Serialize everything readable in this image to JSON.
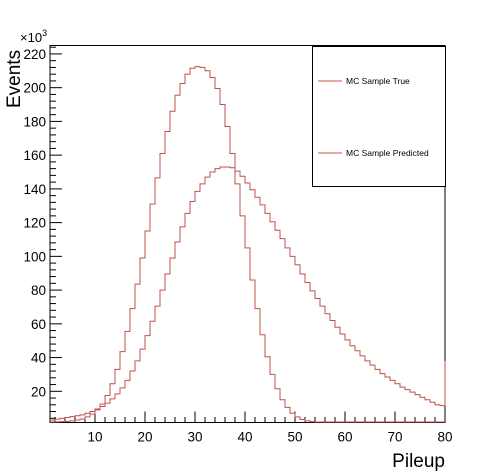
{
  "chart_data": {
    "type": "step-histogram",
    "xlabel": "Pileup",
    "ylabel": "Events",
    "y_multiplier": {
      "base": "×10",
      "exponent": "3"
    },
    "xlim": [
      1,
      80
    ],
    "ylim": [
      1.5,
      225
    ],
    "bin_width": 1,
    "x_ticks": [
      10,
      20,
      30,
      40,
      50,
      60,
      70,
      80
    ],
    "y_ticks": [
      20,
      40,
      60,
      80,
      100,
      120,
      140,
      160,
      180,
      200,
      220
    ],
    "legend_position": "top-right",
    "grid": false,
    "series": [
      {
        "name": "MC Sample True",
        "color": "#c0504d",
        "bin_starts": [
          1,
          2,
          3,
          4,
          5,
          6,
          7,
          8,
          9,
          10,
          11,
          12,
          13,
          14,
          15,
          16,
          17,
          18,
          19,
          20,
          21,
          22,
          23,
          24,
          25,
          26,
          27,
          28,
          29,
          30,
          31,
          32,
          33,
          34,
          35,
          36,
          37,
          38,
          39,
          40,
          41,
          42,
          43,
          44,
          45,
          46,
          47,
          48,
          49,
          50,
          51,
          52,
          53,
          54,
          55,
          56,
          57,
          58,
          59,
          60,
          61,
          62,
          63,
          64,
          65,
          66,
          67,
          68,
          69,
          70,
          71,
          72,
          73,
          74,
          75,
          76,
          77,
          78,
          79,
          80
        ],
        "values": [
          1.8,
          1.9,
          2.0,
          2.2,
          2.5,
          3.0,
          3.6,
          4.8,
          6.5,
          9.0,
          12.5,
          17.5,
          24.5,
          33,
          43.5,
          55.5,
          69,
          83.5,
          99,
          115,
          131,
          146.5,
          161,
          174,
          186,
          195.5,
          202.5,
          208,
          211.5,
          212.5,
          212,
          210,
          206,
          199.5,
          190,
          177,
          161,
          143,
          124,
          105,
          86,
          69,
          53.5,
          40.5,
          30,
          21.5,
          15,
          10.5,
          7,
          4.8,
          3.3,
          2.5,
          2.0,
          1.8,
          1.8,
          1.8,
          1.8,
          1.8,
          1.8,
          1.8,
          1.8,
          1.8,
          1.8,
          1.8,
          1.8,
          1.8,
          1.8,
          1.8,
          1.8,
          1.8,
          1.8,
          1.8,
          1.8,
          1.8,
          1.8,
          1.8,
          1.8,
          1.8,
          1.8,
          1.8
        ]
      },
      {
        "name": "MC Sample Predicted",
        "color": "#c0504d",
        "bin_starts": [
          1,
          2,
          3,
          4,
          5,
          6,
          7,
          8,
          9,
          10,
          11,
          12,
          13,
          14,
          15,
          16,
          17,
          18,
          19,
          20,
          21,
          22,
          23,
          24,
          25,
          26,
          27,
          28,
          29,
          30,
          31,
          32,
          33,
          34,
          35,
          36,
          37,
          38,
          39,
          40,
          41,
          42,
          43,
          44,
          45,
          46,
          47,
          48,
          49,
          50,
          51,
          52,
          53,
          54,
          55,
          56,
          57,
          58,
          59,
          60,
          61,
          62,
          63,
          64,
          65,
          66,
          67,
          68,
          69,
          70,
          71,
          72,
          73,
          74,
          75,
          76,
          77,
          78,
          79,
          80
        ],
        "values": [
          3,
          3.5,
          4,
          4.5,
          5,
          5.5,
          6,
          7,
          8,
          9.5,
          11,
          13,
          15.5,
          18.5,
          22,
          26.5,
          32,
          38,
          45,
          53,
          61.5,
          70.5,
          80,
          89.5,
          99,
          108.5,
          117.5,
          125.5,
          132.5,
          138.5,
          143,
          147,
          150,
          152,
          153,
          153,
          152.5,
          150.5,
          147.5,
          143.5,
          139.5,
          135,
          130.5,
          125.5,
          120.5,
          115.5,
          110.5,
          105,
          100,
          95,
          89.5,
          84.5,
          79.5,
          75,
          70.5,
          66,
          62,
          58,
          54,
          50.5,
          47,
          44,
          41,
          38,
          35.5,
          33,
          30.5,
          28.5,
          26.5,
          24.5,
          22.5,
          21,
          19.5,
          18,
          16.5,
          15,
          13.5,
          12,
          11.5,
          38
        ]
      }
    ]
  }
}
